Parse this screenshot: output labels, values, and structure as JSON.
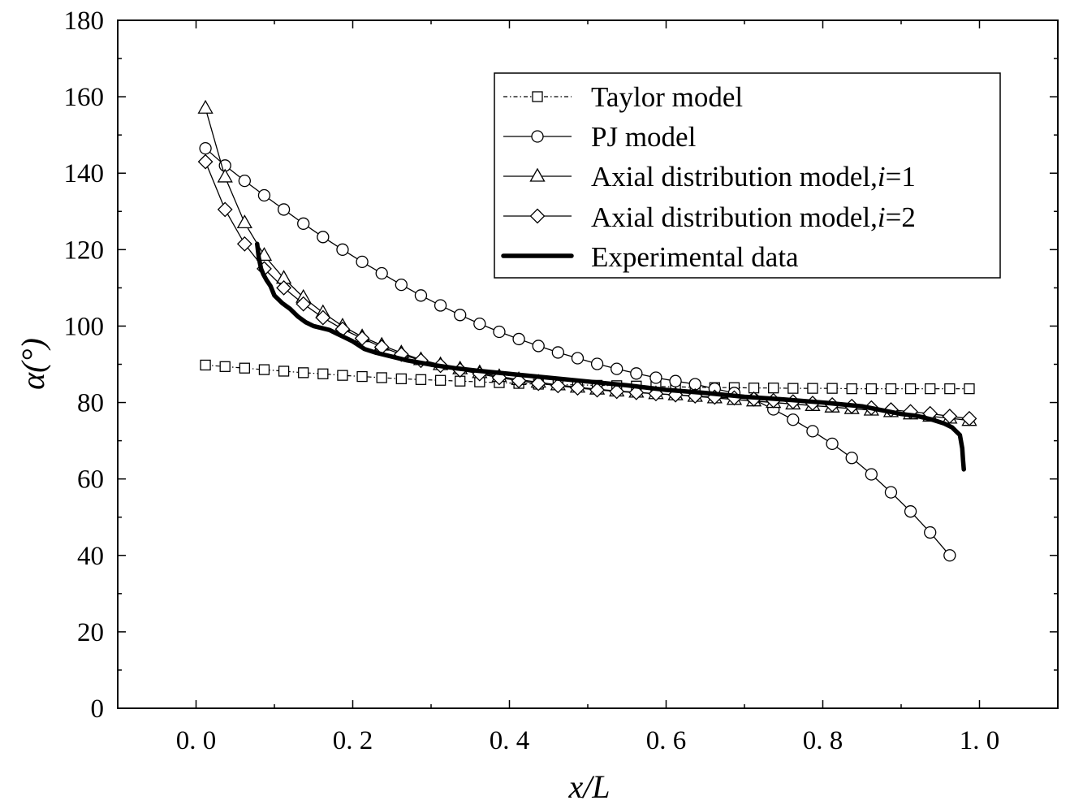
{
  "chart_data": {
    "type": "line",
    "title": "",
    "xlabel": "x/L",
    "ylabel": "α(°)",
    "xlim": [
      -0.1,
      1.1
    ],
    "ylim": [
      0,
      180
    ],
    "xticks": [
      0.0,
      0.2,
      0.4,
      0.6,
      0.8,
      1.0
    ],
    "xtick_labels": [
      "0. 0",
      "0. 2",
      "0. 4",
      "0. 6",
      "0. 8",
      "1. 0"
    ],
    "yticks": [
      0,
      20,
      40,
      60,
      80,
      100,
      120,
      140,
      160,
      180
    ],
    "ytick_labels": [
      "0",
      "20",
      "40",
      "60",
      "80",
      "100",
      "120",
      "140",
      "160",
      "180"
    ],
    "legend_position": "top-right",
    "series": [
      {
        "name": "Taylor model",
        "legend_label": "Taylor model",
        "marker": "square",
        "style": "dash-dot",
        "x": [
          0.012,
          0.037,
          0.062,
          0.087,
          0.112,
          0.137,
          0.162,
          0.187,
          0.212,
          0.237,
          0.262,
          0.287,
          0.312,
          0.337,
          0.362,
          0.387,
          0.412,
          0.437,
          0.462,
          0.487,
          0.512,
          0.537,
          0.562,
          0.587,
          0.612,
          0.637,
          0.662,
          0.687,
          0.712,
          0.737,
          0.762,
          0.787,
          0.812,
          0.837,
          0.862,
          0.887,
          0.912,
          0.937,
          0.962,
          0.987
        ],
        "y": [
          89.8,
          89.4,
          89.0,
          88.6,
          88.2,
          87.8,
          87.5,
          87.1,
          86.8,
          86.5,
          86.2,
          86.0,
          85.8,
          85.6,
          85.4,
          85.2,
          85.0,
          84.8,
          84.7,
          84.6,
          84.5,
          84.4,
          84.3,
          84.2,
          84.1,
          84.0,
          83.9,
          83.9,
          83.8,
          83.8,
          83.7,
          83.7,
          83.7,
          83.6,
          83.6,
          83.6,
          83.6,
          83.6,
          83.6,
          83.6
        ]
      },
      {
        "name": "PJ model",
        "legend_label": "PJ model",
        "marker": "circle",
        "style": "solid",
        "x": [
          0.012,
          0.037,
          0.062,
          0.087,
          0.112,
          0.137,
          0.162,
          0.187,
          0.212,
          0.237,
          0.262,
          0.287,
          0.312,
          0.337,
          0.362,
          0.387,
          0.412,
          0.437,
          0.462,
          0.487,
          0.512,
          0.537,
          0.562,
          0.587,
          0.612,
          0.637,
          0.662,
          0.687,
          0.712,
          0.737,
          0.762,
          0.787,
          0.812,
          0.837,
          0.862,
          0.887,
          0.912,
          0.937,
          0.962
        ],
        "y": [
          146.5,
          142.0,
          138.0,
          134.2,
          130.5,
          126.8,
          123.3,
          120.0,
          116.8,
          113.8,
          110.8,
          108.0,
          105.4,
          102.9,
          100.6,
          98.5,
          96.6,
          94.8,
          93.1,
          91.6,
          90.1,
          88.8,
          87.6,
          86.5,
          85.6,
          84.8,
          83.6,
          82.5,
          80.8,
          78.2,
          75.5,
          72.5,
          69.2,
          65.5,
          61.2,
          56.5,
          51.5,
          46.0,
          40.0
        ]
      },
      {
        "name": "Axial distribution model, i=1",
        "legend_label_main": "Axial distribution model,",
        "legend_label_var": "i",
        "legend_label_eq": "=1",
        "marker": "triangle",
        "style": "solid",
        "x": [
          0.012,
          0.037,
          0.062,
          0.087,
          0.112,
          0.137,
          0.162,
          0.187,
          0.212,
          0.237,
          0.262,
          0.287,
          0.312,
          0.337,
          0.362,
          0.387,
          0.412,
          0.437,
          0.462,
          0.487,
          0.512,
          0.537,
          0.562,
          0.587,
          0.612,
          0.637,
          0.662,
          0.687,
          0.712,
          0.737,
          0.762,
          0.787,
          0.812,
          0.837,
          0.862,
          0.887,
          0.912,
          0.937,
          0.962,
          0.987
        ],
        "y": [
          157.0,
          139.0,
          127.0,
          118.5,
          112.5,
          107.5,
          103.5,
          100.0,
          97.2,
          95.0,
          93.0,
          91.2,
          89.9,
          88.8,
          87.8,
          86.8,
          86.0,
          85.3,
          84.6,
          84.0,
          83.5,
          83.0,
          82.7,
          82.3,
          82.0,
          81.6,
          81.2,
          80.8,
          80.4,
          80.0,
          79.6,
          79.2,
          78.8,
          78.4,
          78.0,
          77.6,
          77.0,
          76.4,
          75.9,
          75.3
        ]
      },
      {
        "name": "Axial distribution model, i=2",
        "legend_label_main": "Axial distribution model,",
        "legend_label_var": "i",
        "legend_label_eq": "=2",
        "marker": "diamond",
        "style": "solid",
        "x": [
          0.012,
          0.037,
          0.062,
          0.087,
          0.112,
          0.137,
          0.162,
          0.187,
          0.212,
          0.237,
          0.262,
          0.287,
          0.312,
          0.337,
          0.362,
          0.387,
          0.412,
          0.437,
          0.462,
          0.487,
          0.512,
          0.537,
          0.562,
          0.587,
          0.612,
          0.637,
          0.662,
          0.687,
          0.712,
          0.737,
          0.762,
          0.787,
          0.812,
          0.837,
          0.862,
          0.887,
          0.912,
          0.937,
          0.962,
          0.987
        ],
        "y": [
          143.0,
          130.5,
          121.5,
          115.0,
          110.0,
          105.8,
          102.2,
          99.2,
          96.8,
          94.5,
          92.6,
          91.0,
          89.7,
          88.5,
          87.5,
          86.5,
          85.7,
          85.0,
          84.4,
          83.8,
          83.3,
          82.9,
          82.6,
          82.3,
          82.0,
          81.7,
          81.4,
          81.2,
          80.9,
          80.5,
          80.2,
          79.8,
          79.4,
          79.0,
          78.6,
          78.1,
          77.6,
          77.1,
          76.4,
          75.8
        ]
      },
      {
        "name": "Experimental data",
        "legend_label": "Experimental data",
        "marker": "none",
        "style": "thick",
        "x": [
          0.078,
          0.08,
          0.083,
          0.086,
          0.09,
          0.095,
          0.1,
          0.11,
          0.12,
          0.13,
          0.14,
          0.15,
          0.16,
          0.17,
          0.18,
          0.19,
          0.2,
          0.215,
          0.23,
          0.25,
          0.27,
          0.3,
          0.33,
          0.36,
          0.4,
          0.45,
          0.5,
          0.55,
          0.6,
          0.65,
          0.7,
          0.75,
          0.8,
          0.85,
          0.9,
          0.92,
          0.94,
          0.955,
          0.965,
          0.97,
          0.975,
          0.978,
          0.979,
          0.98
        ],
        "y": [
          121.5,
          118.0,
          115.0,
          113.5,
          112.0,
          110.5,
          108.0,
          106.0,
          104.5,
          102.5,
          101.0,
          100.0,
          99.5,
          99.0,
          98.0,
          97.0,
          96.0,
          94.0,
          93.0,
          92.0,
          91.0,
          89.9,
          89.0,
          88.3,
          87.5,
          86.5,
          85.5,
          84.5,
          83.3,
          82.5,
          81.5,
          80.8,
          80.0,
          79.0,
          77.0,
          76.5,
          75.5,
          74.5,
          73.5,
          72.5,
          71.5,
          68.0,
          65.0,
          62.5
        ]
      }
    ]
  }
}
